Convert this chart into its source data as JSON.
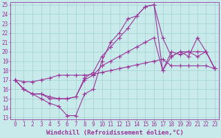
{
  "xlabel": "Windchill (Refroidissement éolien,°C)",
  "x_data": [
    0,
    1,
    2,
    3,
    4,
    5,
    6,
    7,
    8,
    9,
    10,
    11,
    12,
    13,
    14,
    15,
    16,
    17,
    18,
    19,
    20,
    21,
    22,
    23
  ],
  "line1_y": [
    17,
    16,
    15.5,
    15.5,
    15,
    15,
    15,
    15.2,
    17.2,
    17.8,
    19.5,
    20.5,
    21.5,
    22.5,
    23.8,
    24.8,
    25,
    21.5,
    19.5,
    20,
    19.5,
    21.5,
    20,
    18.2
  ],
  "line2_y": [
    17,
    16,
    15.5,
    15.5,
    15.2,
    15,
    15,
    15.2,
    17,
    17.5,
    18.5,
    19,
    19.5,
    20,
    20.5,
    21,
    21.5,
    18,
    20,
    19.7,
    20,
    20,
    20,
    18.2
  ],
  "line3_y": [
    17,
    16.8,
    16.8,
    17,
    17.2,
    17.5,
    17.5,
    17.5,
    17.5,
    17.6,
    17.8,
    18,
    18.2,
    18.4,
    18.6,
    18.8,
    19,
    19.2,
    18.5,
    18.5,
    18.5,
    18.5,
    18.5,
    18.2
  ],
  "line4_y": [
    17,
    16,
    15.5,
    15,
    14.5,
    14.2,
    13.2,
    13.2,
    15.5,
    16,
    19,
    21,
    22,
    23.5,
    23.8,
    24.8,
    25,
    18,
    19.5,
    20,
    20,
    19.5,
    20,
    18.2
  ],
  "xlim": [
    0,
    23
  ],
  "ylim": [
    13,
    25
  ],
  "yticks": [
    13,
    14,
    15,
    16,
    17,
    18,
    19,
    20,
    21,
    22,
    23,
    24,
    25
  ],
  "xticks": [
    0,
    1,
    2,
    3,
    4,
    5,
    6,
    7,
    8,
    9,
    10,
    11,
    12,
    13,
    14,
    15,
    16,
    17,
    18,
    19,
    20,
    21,
    22,
    23
  ],
  "line_color": "#993399",
  "bg_color": "#c8eaea",
  "grid_color": "#a0d0d0",
  "tick_color": "#993399",
  "label_color": "#993399",
  "marker": "+",
  "linewidth": 0.8,
  "markersize": 4,
  "tick_fontsize": 5.5,
  "xlabel_fontsize": 6.5
}
